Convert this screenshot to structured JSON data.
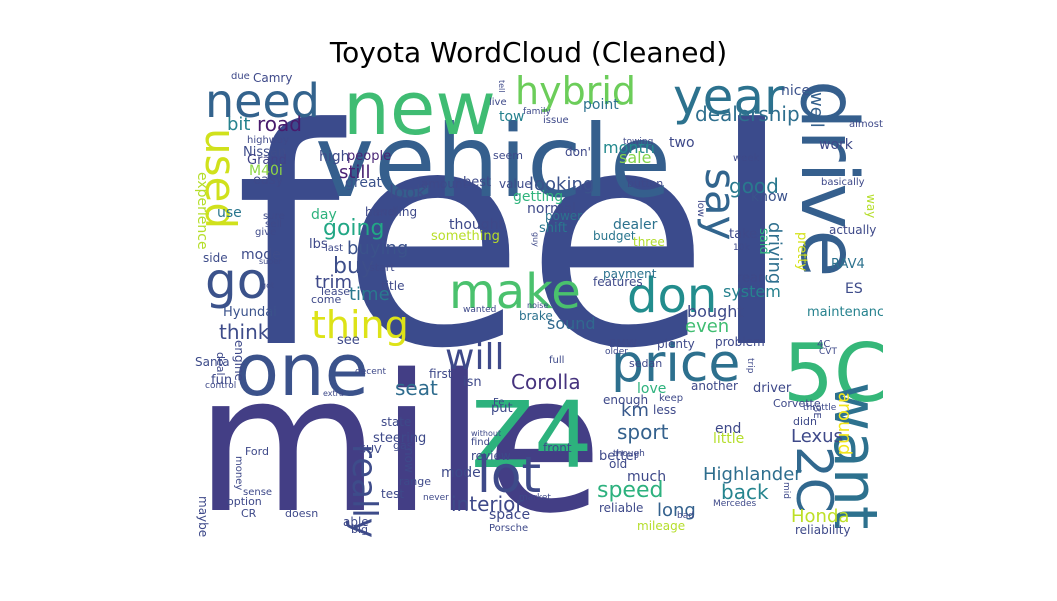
{
  "title": "Toyota WordCloud (Cleaned)",
  "words": [
    {
      "text": "feel",
      "color": "#3b4b8c"
    },
    {
      "text": "mile",
      "color": "#433e85"
    },
    {
      "text": "vehicle",
      "color": "#355f8d"
    },
    {
      "text": "new",
      "color": "#3fbc73"
    },
    {
      "text": "one",
      "color": "#3b528b"
    },
    {
      "text": "Z4",
      "color": "#2db27d"
    },
    {
      "text": "drive",
      "color": "#355f8d"
    },
    {
      "text": "5C",
      "color": "#35b779"
    },
    {
      "text": "need",
      "color": "#33638d"
    },
    {
      "text": "year",
      "color": "#2c728e"
    },
    {
      "text": "price",
      "color": "#2d708e"
    },
    {
      "text": "make",
      "color": "#4ac16d"
    },
    {
      "text": "don",
      "color": "#228d8d"
    },
    {
      "text": "lot",
      "color": "#3e4a89"
    },
    {
      "text": "want",
      "color": "#2d718e"
    },
    {
      "text": "go",
      "color": "#3b528b"
    },
    {
      "text": "hybrid",
      "color": "#6ccd5a"
    },
    {
      "text": "say",
      "color": "#32658e"
    },
    {
      "text": "used",
      "color": "#d0e11c"
    },
    {
      "text": "thing",
      "color": "#dde318"
    },
    {
      "text": "will",
      "color": "#3e4989"
    },
    {
      "text": "2C",
      "color": "#31688e"
    },
    {
      "text": "really",
      "color": "#3e4c8a"
    },
    {
      "text": "dealership",
      "color": "#2e6f8e"
    },
    {
      "text": "going",
      "color": "#22a785"
    },
    {
      "text": "buy",
      "color": "#3d4e8a"
    },
    {
      "text": "road",
      "color": "#481b6d"
    },
    {
      "text": "bit",
      "color": "#26828e"
    },
    {
      "text": "well",
      "color": "#34618d"
    },
    {
      "text": "good",
      "color": "#2a788e"
    },
    {
      "text": "look",
      "color": "#3e4c8a"
    },
    {
      "text": "looking",
      "color": "#3b528b"
    },
    {
      "text": "time",
      "color": "#2a788e"
    },
    {
      "text": "think",
      "color": "#3e4c8a"
    },
    {
      "text": "seat",
      "color": "#2f6c8e"
    },
    {
      "text": "Corolla",
      "color": "#46337e"
    },
    {
      "text": "sport",
      "color": "#34618d"
    },
    {
      "text": "speed",
      "color": "#2cb17e"
    },
    {
      "text": "back",
      "color": "#25848e"
    },
    {
      "text": "Highlander",
      "color": "#2e6e8e"
    },
    {
      "text": "Lexus",
      "color": "#3e4989"
    },
    {
      "text": "around",
      "color": "#f1e51d"
    },
    {
      "text": "interior",
      "color": "#3e4989"
    },
    {
      "text": "long",
      "color": "#34618d"
    },
    {
      "text": "Honda",
      "color": "#bddf26"
    },
    {
      "text": "km",
      "color": "#38598c"
    },
    {
      "text": "even",
      "color": "#40bd72"
    },
    {
      "text": "still",
      "color": "#482173"
    },
    {
      "text": "trim",
      "color": "#3e4989"
    },
    {
      "text": "buying",
      "color": "#3b528b"
    },
    {
      "text": "driving",
      "color": "#2e6f8e"
    },
    {
      "text": "system",
      "color": "#26818e"
    },
    {
      "text": "bought",
      "color": "#3e4a89"
    },
    {
      "text": "sound",
      "color": "#31688e"
    },
    {
      "text": "month",
      "color": "#23898e"
    },
    {
      "text": "sale",
      "color": "#84d44b"
    },
    {
      "text": "point",
      "color": "#2c728e"
    },
    {
      "text": "tow",
      "color": "#26818e"
    },
    {
      "text": "two",
      "color": "#3e4989"
    },
    {
      "text": "nice",
      "color": "#3b528b"
    },
    {
      "text": "high",
      "color": "#3e4a89"
    },
    {
      "text": "people",
      "color": "#482576"
    },
    {
      "text": "great",
      "color": "#3b528b"
    },
    {
      "text": "work",
      "color": "#3e4989"
    },
    {
      "text": "Nissan",
      "color": "#3e4c8a"
    },
    {
      "text": "Grand",
      "color": "#414487"
    },
    {
      "text": "M40i",
      "color": "#8fd744"
    },
    {
      "text": "easy",
      "color": "#3e4989"
    },
    {
      "text": "experience",
      "color": "#b5de2b"
    },
    {
      "text": "use",
      "color": "#2a768e"
    },
    {
      "text": "day",
      "color": "#2db27d"
    },
    {
      "text": "dealer",
      "color": "#2c728e"
    },
    {
      "text": "thought",
      "color": "#3e4989"
    },
    {
      "text": "something",
      "color": "#b8de29"
    },
    {
      "text": "normal",
      "color": "#3e4a89"
    },
    {
      "text": "getting",
      "color": "#2eb37c"
    },
    {
      "text": "shift",
      "color": "#2a778e"
    },
    {
      "text": "best",
      "color": "#3e4989"
    },
    {
      "text": "amount",
      "color": "#3e4989"
    },
    {
      "text": "value",
      "color": "#3e4c8a"
    },
    {
      "text": "power",
      "color": "#2c738e"
    },
    {
      "text": "budget",
      "color": "#2a768e"
    },
    {
      "text": "three",
      "color": "#b2dd2d"
    },
    {
      "text": "know",
      "color": "#3b528b"
    },
    {
      "text": "take",
      "color": "#3e4989"
    },
    {
      "text": "said",
      "color": "#2db27d"
    },
    {
      "text": "pretty",
      "color": "#d5e21a"
    },
    {
      "text": "actually",
      "color": "#3e4989"
    },
    {
      "text": "RAV4",
      "color": "#2c728e"
    },
    {
      "text": "ES",
      "color": "#3e4c8a"
    },
    {
      "text": "maintenance",
      "color": "#26828e"
    },
    {
      "text": "rear",
      "color": "#3e4989"
    },
    {
      "text": "payment",
      "color": "#2c728e"
    },
    {
      "text": "features",
      "color": "#3e4989"
    },
    {
      "text": "mode",
      "color": "#3e4c8a"
    },
    {
      "text": "lbs",
      "color": "#3e4989"
    },
    {
      "text": "last",
      "color": "#3e4989"
    },
    {
      "text": "lease",
      "color": "#3e4989"
    },
    {
      "text": "title",
      "color": "#3e4989"
    },
    {
      "text": "come",
      "color": "#3e4989"
    },
    {
      "text": "start",
      "color": "#3e4989"
    },
    {
      "text": "Hyundai",
      "color": "#3b528b"
    },
    {
      "text": "side",
      "color": "#3e4c8a"
    },
    {
      "text": "see",
      "color": "#3e4989"
    },
    {
      "text": "engine",
      "color": "#3e4989"
    },
    {
      "text": "fun",
      "color": "#3e4989"
    },
    {
      "text": "Santa",
      "color": "#3e4c8a"
    },
    {
      "text": "deal",
      "color": "#3e4989"
    },
    {
      "text": "first",
      "color": "#3e4989"
    },
    {
      "text": "put",
      "color": "#3e4989"
    },
    {
      "text": "isn",
      "color": "#3e4989"
    },
    {
      "text": "brake",
      "color": "#2c728e"
    },
    {
      "text": "love",
      "color": "#2db27d"
    },
    {
      "text": "enough",
      "color": "#3e4989"
    },
    {
      "text": "less",
      "color": "#3e4989"
    },
    {
      "text": "keep",
      "color": "#3e4989"
    },
    {
      "text": "driver",
      "color": "#3e4989"
    },
    {
      "text": "another",
      "color": "#3e4989"
    },
    {
      "text": "problem",
      "color": "#3e4989"
    },
    {
      "text": "plenty",
      "color": "#3e4989"
    },
    {
      "text": "BMW",
      "color": "#3e4989"
    },
    {
      "text": "sedan",
      "color": "#3e4989"
    },
    {
      "text": "full",
      "color": "#3e4989"
    },
    {
      "text": "Corvette",
      "color": "#3e4989"
    },
    {
      "text": "end",
      "color": "#3e4989"
    },
    {
      "text": "little",
      "color": "#b5de2b"
    },
    {
      "text": "didn",
      "color": "#3e4989"
    },
    {
      "text": "steering",
      "color": "#3e4989"
    },
    {
      "text": "gas",
      "color": "#3e4989"
    },
    {
      "text": "state",
      "color": "#3e4989"
    },
    {
      "text": "SUV",
      "color": "#3e4989"
    },
    {
      "text": "now",
      "color": "#3e4989"
    },
    {
      "text": "range",
      "color": "#3e4989"
    },
    {
      "text": "test",
      "color": "#3e4989"
    },
    {
      "text": "model",
      "color": "#3e4989"
    },
    {
      "text": "review",
      "color": "#3e4989"
    },
    {
      "text": "front",
      "color": "#3e4989"
    },
    {
      "text": "better",
      "color": "#3e4989"
    },
    {
      "text": "old",
      "color": "#3e4989"
    },
    {
      "text": "much",
      "color": "#3e4989"
    },
    {
      "text": "space",
      "color": "#3e4989"
    },
    {
      "text": "reliable",
      "color": "#3e4989"
    },
    {
      "text": "mileage",
      "color": "#b5de2b"
    },
    {
      "text": "reliability",
      "color": "#3e4989"
    },
    {
      "text": "able",
      "color": "#3e4989"
    },
    {
      "text": "big",
      "color": "#3e4989"
    },
    {
      "text": "Porsche",
      "color": "#3e4989"
    },
    {
      "text": "Ford",
      "color": "#3e4989"
    },
    {
      "text": "money",
      "color": "#3e4989"
    },
    {
      "text": "maybe",
      "color": "#3e4989"
    },
    {
      "text": "option",
      "color": "#3e4989"
    },
    {
      "text": "sense",
      "color": "#3e4989"
    },
    {
      "text": "doesn",
      "color": "#3e4989"
    },
    {
      "text": "CR",
      "color": "#3e4989"
    },
    {
      "text": "Camry",
      "color": "#3e4989"
    },
    {
      "text": "due",
      "color": "#3e4989"
    },
    {
      "text": "highway",
      "color": "#3e4989"
    },
    {
      "text": "handling",
      "color": "#3e4989"
    },
    {
      "text": "level",
      "color": "#3e4989"
    },
    {
      "text": "sure",
      "color": "#3e4989"
    },
    {
      "text": "sell",
      "color": "#3e4989"
    },
    {
      "text": "give",
      "color": "#3e4989"
    },
    {
      "text": "super",
      "color": "#3e4989"
    },
    {
      "text": "got",
      "color": "#3e4989"
    },
    {
      "text": "don'",
      "color": "#3e4989"
    },
    {
      "text": "seem",
      "color": "#3e4989"
    },
    {
      "text": "live",
      "color": "#3e4989"
    },
    {
      "text": "tell",
      "color": "#3e4989"
    },
    {
      "text": "family",
      "color": "#3e4989"
    },
    {
      "text": "issue",
      "color": "#3e4989"
    },
    {
      "text": "towing",
      "color": "#3e4989"
    },
    {
      "text": "week",
      "color": "#3e4989"
    },
    {
      "text": "button",
      "color": "#3e4989"
    },
    {
      "text": "low",
      "color": "#3e4989"
    },
    {
      "text": "basically",
      "color": "#3e4989"
    },
    {
      "text": "way",
      "color": "#b5de2b"
    },
    {
      "text": "almost",
      "color": "#3e4989"
    },
    {
      "text": "wanted",
      "color": "#3e4989"
    },
    {
      "text": "noise",
      "color": "#3e4989"
    },
    {
      "text": "Fe",
      "color": "#3e4989"
    },
    {
      "text": "find",
      "color": "#3e4989"
    },
    {
      "text": "without",
      "color": "#3e4989"
    },
    {
      "text": "though",
      "color": "#3e4989"
    },
    {
      "text": "market",
      "color": "#3e4989"
    },
    {
      "text": "never",
      "color": "#3e4989"
    },
    {
      "text": "Mercedes",
      "color": "#3e4989"
    },
    {
      "text": "mid",
      "color": "#3e4989"
    },
    {
      "text": "throttle",
      "color": "#3e4989"
    },
    {
      "text": "control",
      "color": "#3e4989"
    },
    {
      "text": "decent",
      "color": "#3e4989"
    },
    {
      "text": "extra",
      "color": "#3e4989"
    },
    {
      "text": "CVT",
      "color": "#3e4989"
    },
    {
      "text": "trip",
      "color": "#3e4989"
    },
    {
      "text": "older",
      "color": "#3e4989"
    },
    {
      "text": "guy",
      "color": "#3e4989"
    },
    {
      "text": "4C",
      "color": "#3e4989"
    },
    {
      "text": "3E",
      "color": "#3e4989"
    },
    {
      "text": "10k",
      "color": "#3e4989"
    },
    {
      "text": "bad",
      "color": "#3e4989"
    }
  ]
}
